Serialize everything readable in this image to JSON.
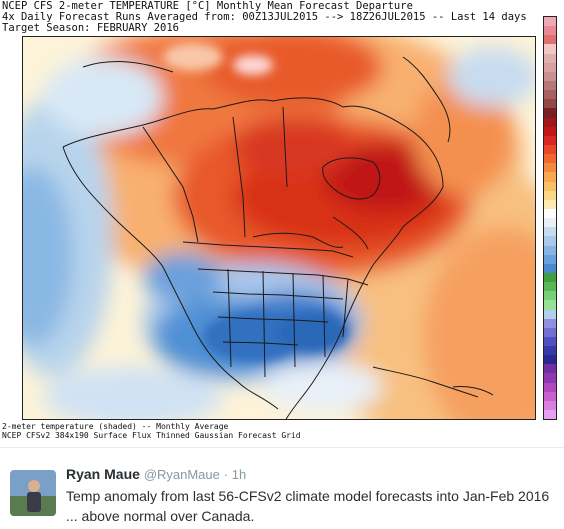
{
  "header": {
    "line1": "NCEP CFS 2-meter TEMPERATURE [°C] Monthly Mean Forecast Departure",
    "line2": "4x Daily Forecast Runs Averaged from: 00Z13JUL2015 --> 18Z26JUL2015 -- Last 14 days",
    "line3": "Target Season: FEBRUARY 2016"
  },
  "footer": {
    "line1": "2-meter temperature (shaded) -- Monthly Average",
    "line2": "NCEP CFSv2 384x190 Surface Flux Thinned Gaussian Forecast Grid"
  },
  "colorbar": {
    "colors": [
      "#f0a8b4",
      "#e88a94",
      "#e07070",
      "#f0c8c8",
      "#e0b0b0",
      "#d8a0a0",
      "#c89090",
      "#b87878",
      "#a86060",
      "#904848",
      "#7a2020",
      "#a01818",
      "#c01818",
      "#d82820",
      "#e84828",
      "#f06830",
      "#f48840",
      "#f8a850",
      "#f8c068",
      "#fad888",
      "#fcecb0",
      "#fefefe",
      "#e8f0f8",
      "#c8dcf0",
      "#a8c8ec",
      "#88b4e4",
      "#6aa0dc",
      "#4a88d0",
      "#40a040",
      "#58b858",
      "#78d078",
      "#98e098",
      "#b0d0f0",
      "#9090e0",
      "#7070d0",
      "#5050c0",
      "#3838a8",
      "#282890",
      "#7030a0",
      "#9038b0",
      "#b048c0",
      "#c860d0",
      "#d880e0",
      "#e8a0f0"
    ]
  },
  "tweet": {
    "name": "Ryan Maue",
    "handle": "@RyanMaue",
    "time": "· 1h",
    "text": "Temp anomaly from last 56-CFSv2 climate model forecasts into Jan-Feb 2016 ... above normal over Canada."
  }
}
